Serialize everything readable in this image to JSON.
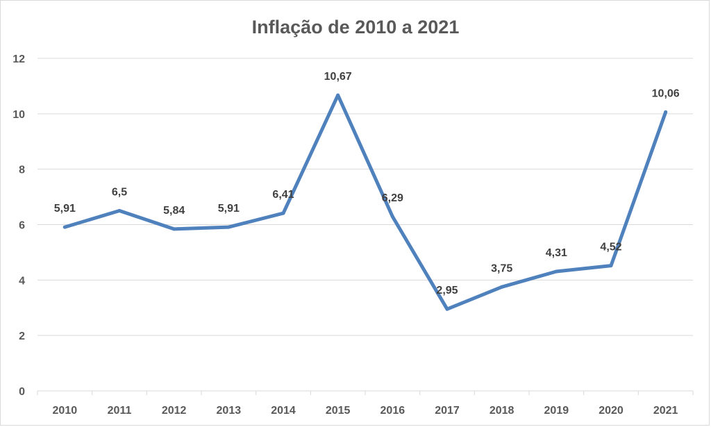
{
  "chart_data": {
    "type": "line",
    "title": "Inflação de 2010 a 2021",
    "xlabel": "",
    "ylabel": "",
    "categories": [
      "2010",
      "2011",
      "2012",
      "2013",
      "2014",
      "2015",
      "2016",
      "2017",
      "2018",
      "2019",
      "2020",
      "2021"
    ],
    "series": [
      {
        "values": [
          5.91,
          6.5,
          5.84,
          5.91,
          6.41,
          10.67,
          6.29,
          2.95,
          3.75,
          4.31,
          4.52,
          10.06
        ],
        "labels": [
          "5,91",
          "6,5",
          "5,84",
          "5,91",
          "6,41",
          "10,67",
          "6,29",
          "2,95",
          "3,75",
          "4,31",
          "4,52",
          "10,06"
        ],
        "color": "#4f81bd"
      }
    ],
    "ylim": [
      0,
      12
    ],
    "yticks": [
      "0",
      "2",
      "4",
      "6",
      "8",
      "10",
      "12"
    ],
    "grid": true,
    "legend": "none"
  }
}
